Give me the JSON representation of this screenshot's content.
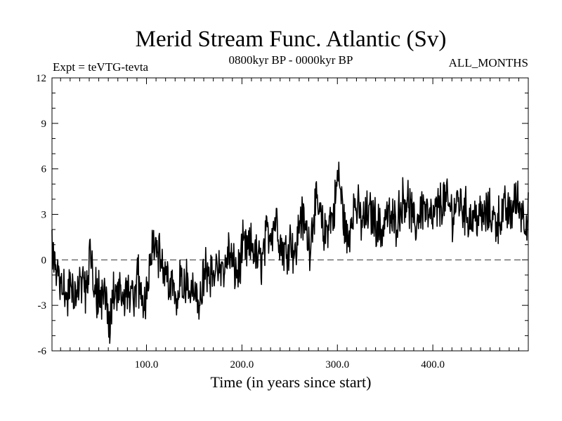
{
  "chart_data": {
    "type": "line",
    "title": "Merid Stream Func. Atlantic (Sv)",
    "subtitle_left": "Expt = teVTG-tevta",
    "subtitle_center": "0800kyr BP - 0000kyr BP",
    "subtitle_right": "ALL_MONTHS",
    "xlabel": "Time (in years since start)",
    "ylabel": "",
    "xlim": [
      1,
      500
    ],
    "ylim": [
      -6,
      12
    ],
    "x_ticks": [
      100,
      200,
      300,
      400
    ],
    "x_tick_labels": [
      "100.0",
      "200.0",
      "300.0",
      "400.0"
    ],
    "y_ticks": [
      -6,
      -3,
      0,
      3,
      6,
      9,
      12
    ],
    "y_tick_labels": [
      "-6",
      "-3",
      "0",
      "3",
      "6",
      "9",
      "12"
    ],
    "reference_line": {
      "y": 0,
      "style": "dashed"
    },
    "grid": false,
    "series": [
      {
        "name": "Merid Stream Func. Atlantic",
        "x_start": 1,
        "x_step": 5,
        "values": [
          0.6,
          -0.5,
          -1.5,
          -2.8,
          -1.8,
          -2.2,
          -1.0,
          -2.5,
          0.4,
          -2.0,
          -2.4,
          -2.3,
          -4.5,
          -2.2,
          -2.0,
          -2.6,
          -1.9,
          -3.0,
          -1.3,
          -2.9,
          -2.0,
          1.6,
          0.8,
          -0.8,
          -1.0,
          -1.2,
          -2.7,
          -0.8,
          -1.7,
          -1.8,
          -2.5,
          -3.0,
          -0.8,
          -1.3,
          -0.5,
          -0.6,
          -1.0,
          0.6,
          -0.5,
          -0.9,
          0.8,
          0.5,
          1.0,
          0.0,
          -0.1,
          1.6,
          2.0,
          2.8,
          0.9,
          0.5,
          1.5,
          0.1,
          3.0,
          2.2,
          1.0,
          3.5,
          3.2,
          1.5,
          2.6,
          2.9,
          5.8,
          3.0,
          1.0,
          3.6,
          3.4,
          2.4,
          3.0,
          3.0,
          2.5,
          1.8,
          3.0,
          2.6,
          2.5,
          3.5,
          4.2,
          3.5,
          2.0,
          3.2,
          3.6,
          2.6,
          2.8,
          3.4,
          4.0,
          3.6,
          3.0,
          4.0,
          3.5,
          3.0,
          2.7,
          3.0,
          2.7,
          3.0,
          3.0,
          2.5,
          2.9,
          3.3,
          2.9,
          4.0,
          3.6,
          2.8
        ]
      }
    ]
  }
}
